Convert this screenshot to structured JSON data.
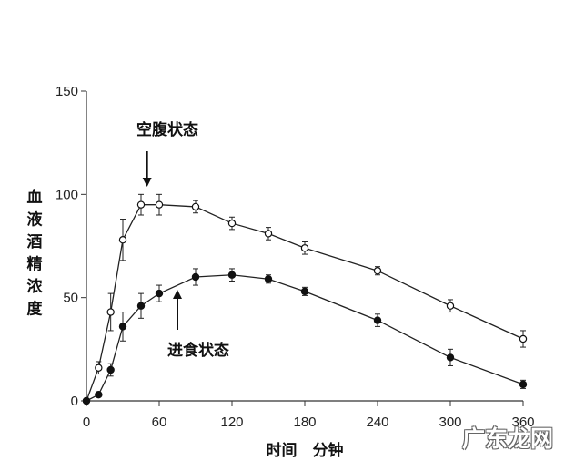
{
  "chart_data": {
    "type": "line",
    "xlabel": "时间　分钟",
    "ylabel": "血液酒精浓度",
    "xlim": [
      0,
      360
    ],
    "ylim": [
      0,
      150
    ],
    "xticks": [
      0,
      60,
      120,
      180,
      240,
      300,
      360
    ],
    "yticks": [
      0,
      50,
      100,
      150
    ],
    "grid": false,
    "series": [
      {
        "name": "空腹状态",
        "marker": "open-circle",
        "points": [
          {
            "x": 0,
            "y": 0,
            "err": 0
          },
          {
            "x": 10,
            "y": 16,
            "err": 3
          },
          {
            "x": 20,
            "y": 43,
            "err": 9
          },
          {
            "x": 30,
            "y": 78,
            "err": 10
          },
          {
            "x": 45,
            "y": 95,
            "err": 5
          },
          {
            "x": 60,
            "y": 95,
            "err": 5
          },
          {
            "x": 90,
            "y": 94,
            "err": 3
          },
          {
            "x": 120,
            "y": 86,
            "err": 3
          },
          {
            "x": 150,
            "y": 81,
            "err": 3
          },
          {
            "x": 180,
            "y": 74,
            "err": 3
          },
          {
            "x": 240,
            "y": 63,
            "err": 2
          },
          {
            "x": 300,
            "y": 46,
            "err": 3
          },
          {
            "x": 360,
            "y": 30,
            "err": 4
          }
        ]
      },
      {
        "name": "进食状态",
        "marker": "filled-circle",
        "points": [
          {
            "x": 0,
            "y": 0,
            "err": 0
          },
          {
            "x": 10,
            "y": 3,
            "err": 1
          },
          {
            "x": 20,
            "y": 15,
            "err": 3
          },
          {
            "x": 30,
            "y": 36,
            "err": 7
          },
          {
            "x": 45,
            "y": 46,
            "err": 6
          },
          {
            "x": 60,
            "y": 52,
            "err": 4
          },
          {
            "x": 90,
            "y": 60,
            "err": 4
          },
          {
            "x": 120,
            "y": 61,
            "err": 3
          },
          {
            "x": 150,
            "y": 59,
            "err": 2
          },
          {
            "x": 180,
            "y": 53,
            "err": 2
          },
          {
            "x": 240,
            "y": 39,
            "err": 3
          },
          {
            "x": 300,
            "y": 21,
            "err": 4
          },
          {
            "x": 360,
            "y": 8,
            "err": 2
          }
        ]
      }
    ],
    "annotations": [
      {
        "text": "空腹状态",
        "arrow": "down",
        "points_to_x": 50,
        "points_to_series": 0
      },
      {
        "text": "进食状态",
        "arrow": "up",
        "points_to_x": 75,
        "points_to_series": 1
      }
    ]
  },
  "watermark": "广东龙网"
}
